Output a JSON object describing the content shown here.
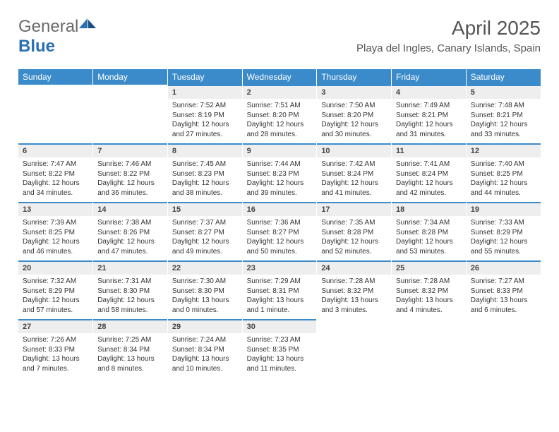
{
  "brand": {
    "name_part1": "General",
    "name_part2": "Blue"
  },
  "header": {
    "title": "April 2025",
    "location": "Playa del Ingles, Canary Islands, Spain"
  },
  "colors": {
    "header_bar": "#3b8bca",
    "day_bg": "#eeeeee",
    "text": "#333333",
    "logo_gray": "#6a6a6a",
    "logo_blue": "#2a6fb0",
    "logo_navy": "#1c4d80"
  },
  "cal": {
    "weekdays": [
      "Sunday",
      "Monday",
      "Tuesday",
      "Wednesday",
      "Thursday",
      "Friday",
      "Saturday"
    ],
    "weeks": [
      [
        null,
        null,
        {
          "n": "1",
          "sr": "Sunrise: 7:52 AM",
          "ss": "Sunset: 8:19 PM",
          "dl1": "Daylight: 12 hours",
          "dl2": "and 27 minutes."
        },
        {
          "n": "2",
          "sr": "Sunrise: 7:51 AM",
          "ss": "Sunset: 8:20 PM",
          "dl1": "Daylight: 12 hours",
          "dl2": "and 28 minutes."
        },
        {
          "n": "3",
          "sr": "Sunrise: 7:50 AM",
          "ss": "Sunset: 8:20 PM",
          "dl1": "Daylight: 12 hours",
          "dl2": "and 30 minutes."
        },
        {
          "n": "4",
          "sr": "Sunrise: 7:49 AM",
          "ss": "Sunset: 8:21 PM",
          "dl1": "Daylight: 12 hours",
          "dl2": "and 31 minutes."
        },
        {
          "n": "5",
          "sr": "Sunrise: 7:48 AM",
          "ss": "Sunset: 8:21 PM",
          "dl1": "Daylight: 12 hours",
          "dl2": "and 33 minutes."
        }
      ],
      [
        {
          "n": "6",
          "sr": "Sunrise: 7:47 AM",
          "ss": "Sunset: 8:22 PM",
          "dl1": "Daylight: 12 hours",
          "dl2": "and 34 minutes."
        },
        {
          "n": "7",
          "sr": "Sunrise: 7:46 AM",
          "ss": "Sunset: 8:22 PM",
          "dl1": "Daylight: 12 hours",
          "dl2": "and 36 minutes."
        },
        {
          "n": "8",
          "sr": "Sunrise: 7:45 AM",
          "ss": "Sunset: 8:23 PM",
          "dl1": "Daylight: 12 hours",
          "dl2": "and 38 minutes."
        },
        {
          "n": "9",
          "sr": "Sunrise: 7:44 AM",
          "ss": "Sunset: 8:23 PM",
          "dl1": "Daylight: 12 hours",
          "dl2": "and 39 minutes."
        },
        {
          "n": "10",
          "sr": "Sunrise: 7:42 AM",
          "ss": "Sunset: 8:24 PM",
          "dl1": "Daylight: 12 hours",
          "dl2": "and 41 minutes."
        },
        {
          "n": "11",
          "sr": "Sunrise: 7:41 AM",
          "ss": "Sunset: 8:24 PM",
          "dl1": "Daylight: 12 hours",
          "dl2": "and 42 minutes."
        },
        {
          "n": "12",
          "sr": "Sunrise: 7:40 AM",
          "ss": "Sunset: 8:25 PM",
          "dl1": "Daylight: 12 hours",
          "dl2": "and 44 minutes."
        }
      ],
      [
        {
          "n": "13",
          "sr": "Sunrise: 7:39 AM",
          "ss": "Sunset: 8:25 PM",
          "dl1": "Daylight: 12 hours",
          "dl2": "and 46 minutes."
        },
        {
          "n": "14",
          "sr": "Sunrise: 7:38 AM",
          "ss": "Sunset: 8:26 PM",
          "dl1": "Daylight: 12 hours",
          "dl2": "and 47 minutes."
        },
        {
          "n": "15",
          "sr": "Sunrise: 7:37 AM",
          "ss": "Sunset: 8:27 PM",
          "dl1": "Daylight: 12 hours",
          "dl2": "and 49 minutes."
        },
        {
          "n": "16",
          "sr": "Sunrise: 7:36 AM",
          "ss": "Sunset: 8:27 PM",
          "dl1": "Daylight: 12 hours",
          "dl2": "and 50 minutes."
        },
        {
          "n": "17",
          "sr": "Sunrise: 7:35 AM",
          "ss": "Sunset: 8:28 PM",
          "dl1": "Daylight: 12 hours",
          "dl2": "and 52 minutes."
        },
        {
          "n": "18",
          "sr": "Sunrise: 7:34 AM",
          "ss": "Sunset: 8:28 PM",
          "dl1": "Daylight: 12 hours",
          "dl2": "and 53 minutes."
        },
        {
          "n": "19",
          "sr": "Sunrise: 7:33 AM",
          "ss": "Sunset: 8:29 PM",
          "dl1": "Daylight: 12 hours",
          "dl2": "and 55 minutes."
        }
      ],
      [
        {
          "n": "20",
          "sr": "Sunrise: 7:32 AM",
          "ss": "Sunset: 8:29 PM",
          "dl1": "Daylight: 12 hours",
          "dl2": "and 57 minutes."
        },
        {
          "n": "21",
          "sr": "Sunrise: 7:31 AM",
          "ss": "Sunset: 8:30 PM",
          "dl1": "Daylight: 12 hours",
          "dl2": "and 58 minutes."
        },
        {
          "n": "22",
          "sr": "Sunrise: 7:30 AM",
          "ss": "Sunset: 8:30 PM",
          "dl1": "Daylight: 13 hours",
          "dl2": "and 0 minutes."
        },
        {
          "n": "23",
          "sr": "Sunrise: 7:29 AM",
          "ss": "Sunset: 8:31 PM",
          "dl1": "Daylight: 13 hours",
          "dl2": "and 1 minute."
        },
        {
          "n": "24",
          "sr": "Sunrise: 7:28 AM",
          "ss": "Sunset: 8:32 PM",
          "dl1": "Daylight: 13 hours",
          "dl2": "and 3 minutes."
        },
        {
          "n": "25",
          "sr": "Sunrise: 7:28 AM",
          "ss": "Sunset: 8:32 PM",
          "dl1": "Daylight: 13 hours",
          "dl2": "and 4 minutes."
        },
        {
          "n": "26",
          "sr": "Sunrise: 7:27 AM",
          "ss": "Sunset: 8:33 PM",
          "dl1": "Daylight: 13 hours",
          "dl2": "and 6 minutes."
        }
      ],
      [
        {
          "n": "27",
          "sr": "Sunrise: 7:26 AM",
          "ss": "Sunset: 8:33 PM",
          "dl1": "Daylight: 13 hours",
          "dl2": "and 7 minutes."
        },
        {
          "n": "28",
          "sr": "Sunrise: 7:25 AM",
          "ss": "Sunset: 8:34 PM",
          "dl1": "Daylight: 13 hours",
          "dl2": "and 8 minutes."
        },
        {
          "n": "29",
          "sr": "Sunrise: 7:24 AM",
          "ss": "Sunset: 8:34 PM",
          "dl1": "Daylight: 13 hours",
          "dl2": "and 10 minutes."
        },
        {
          "n": "30",
          "sr": "Sunrise: 7:23 AM",
          "ss": "Sunset: 8:35 PM",
          "dl1": "Daylight: 13 hours",
          "dl2": "and 11 minutes."
        },
        null,
        null,
        null
      ]
    ]
  }
}
